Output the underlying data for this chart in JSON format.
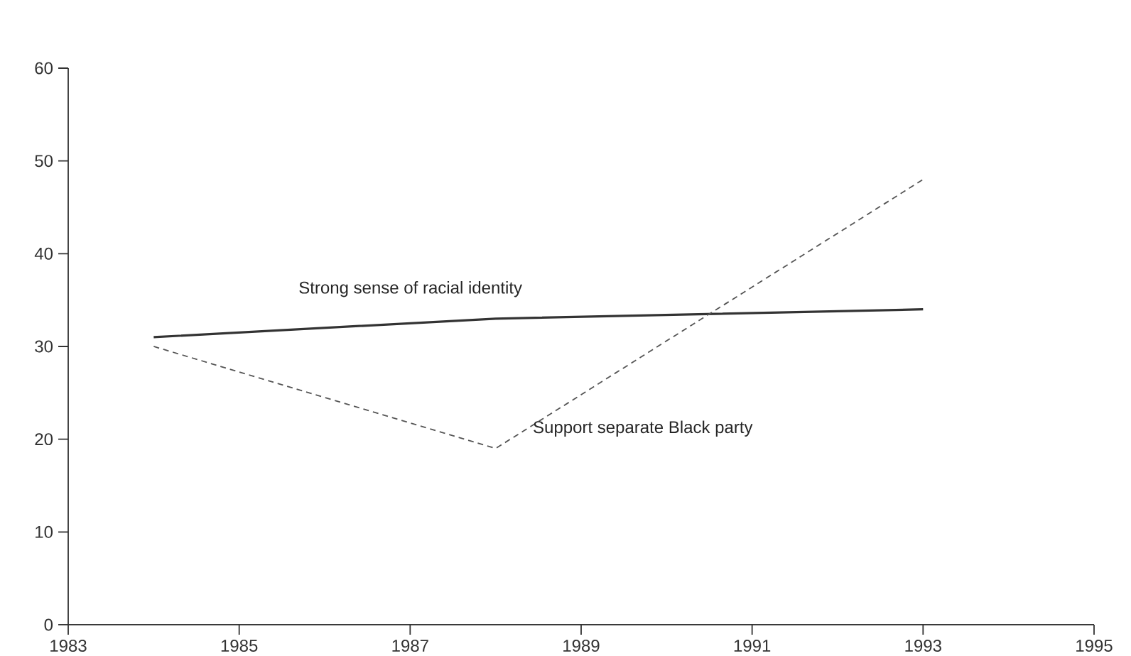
{
  "chart_data": {
    "type": "line",
    "x": [
      1984,
      1988,
      1993
    ],
    "series": [
      {
        "name": "Strong sense of racial identity",
        "color": "#333333",
        "line_style": "solid",
        "values": [
          31,
          33,
          34
        ]
      },
      {
        "name": "Support separate Black party",
        "color": "#555555",
        "line_style": "dashed",
        "values": [
          30,
          19,
          48
        ]
      }
    ],
    "xlim": [
      1983,
      1995
    ],
    "xticks": [
      1983,
      1985,
      1987,
      1989,
      1991,
      1993,
      1995
    ],
    "ylim": [
      0,
      60
    ],
    "yticks": [
      0,
      10,
      20,
      30,
      40,
      50,
      60
    ],
    "grid": false,
    "legend": false,
    "marker": "none"
  }
}
